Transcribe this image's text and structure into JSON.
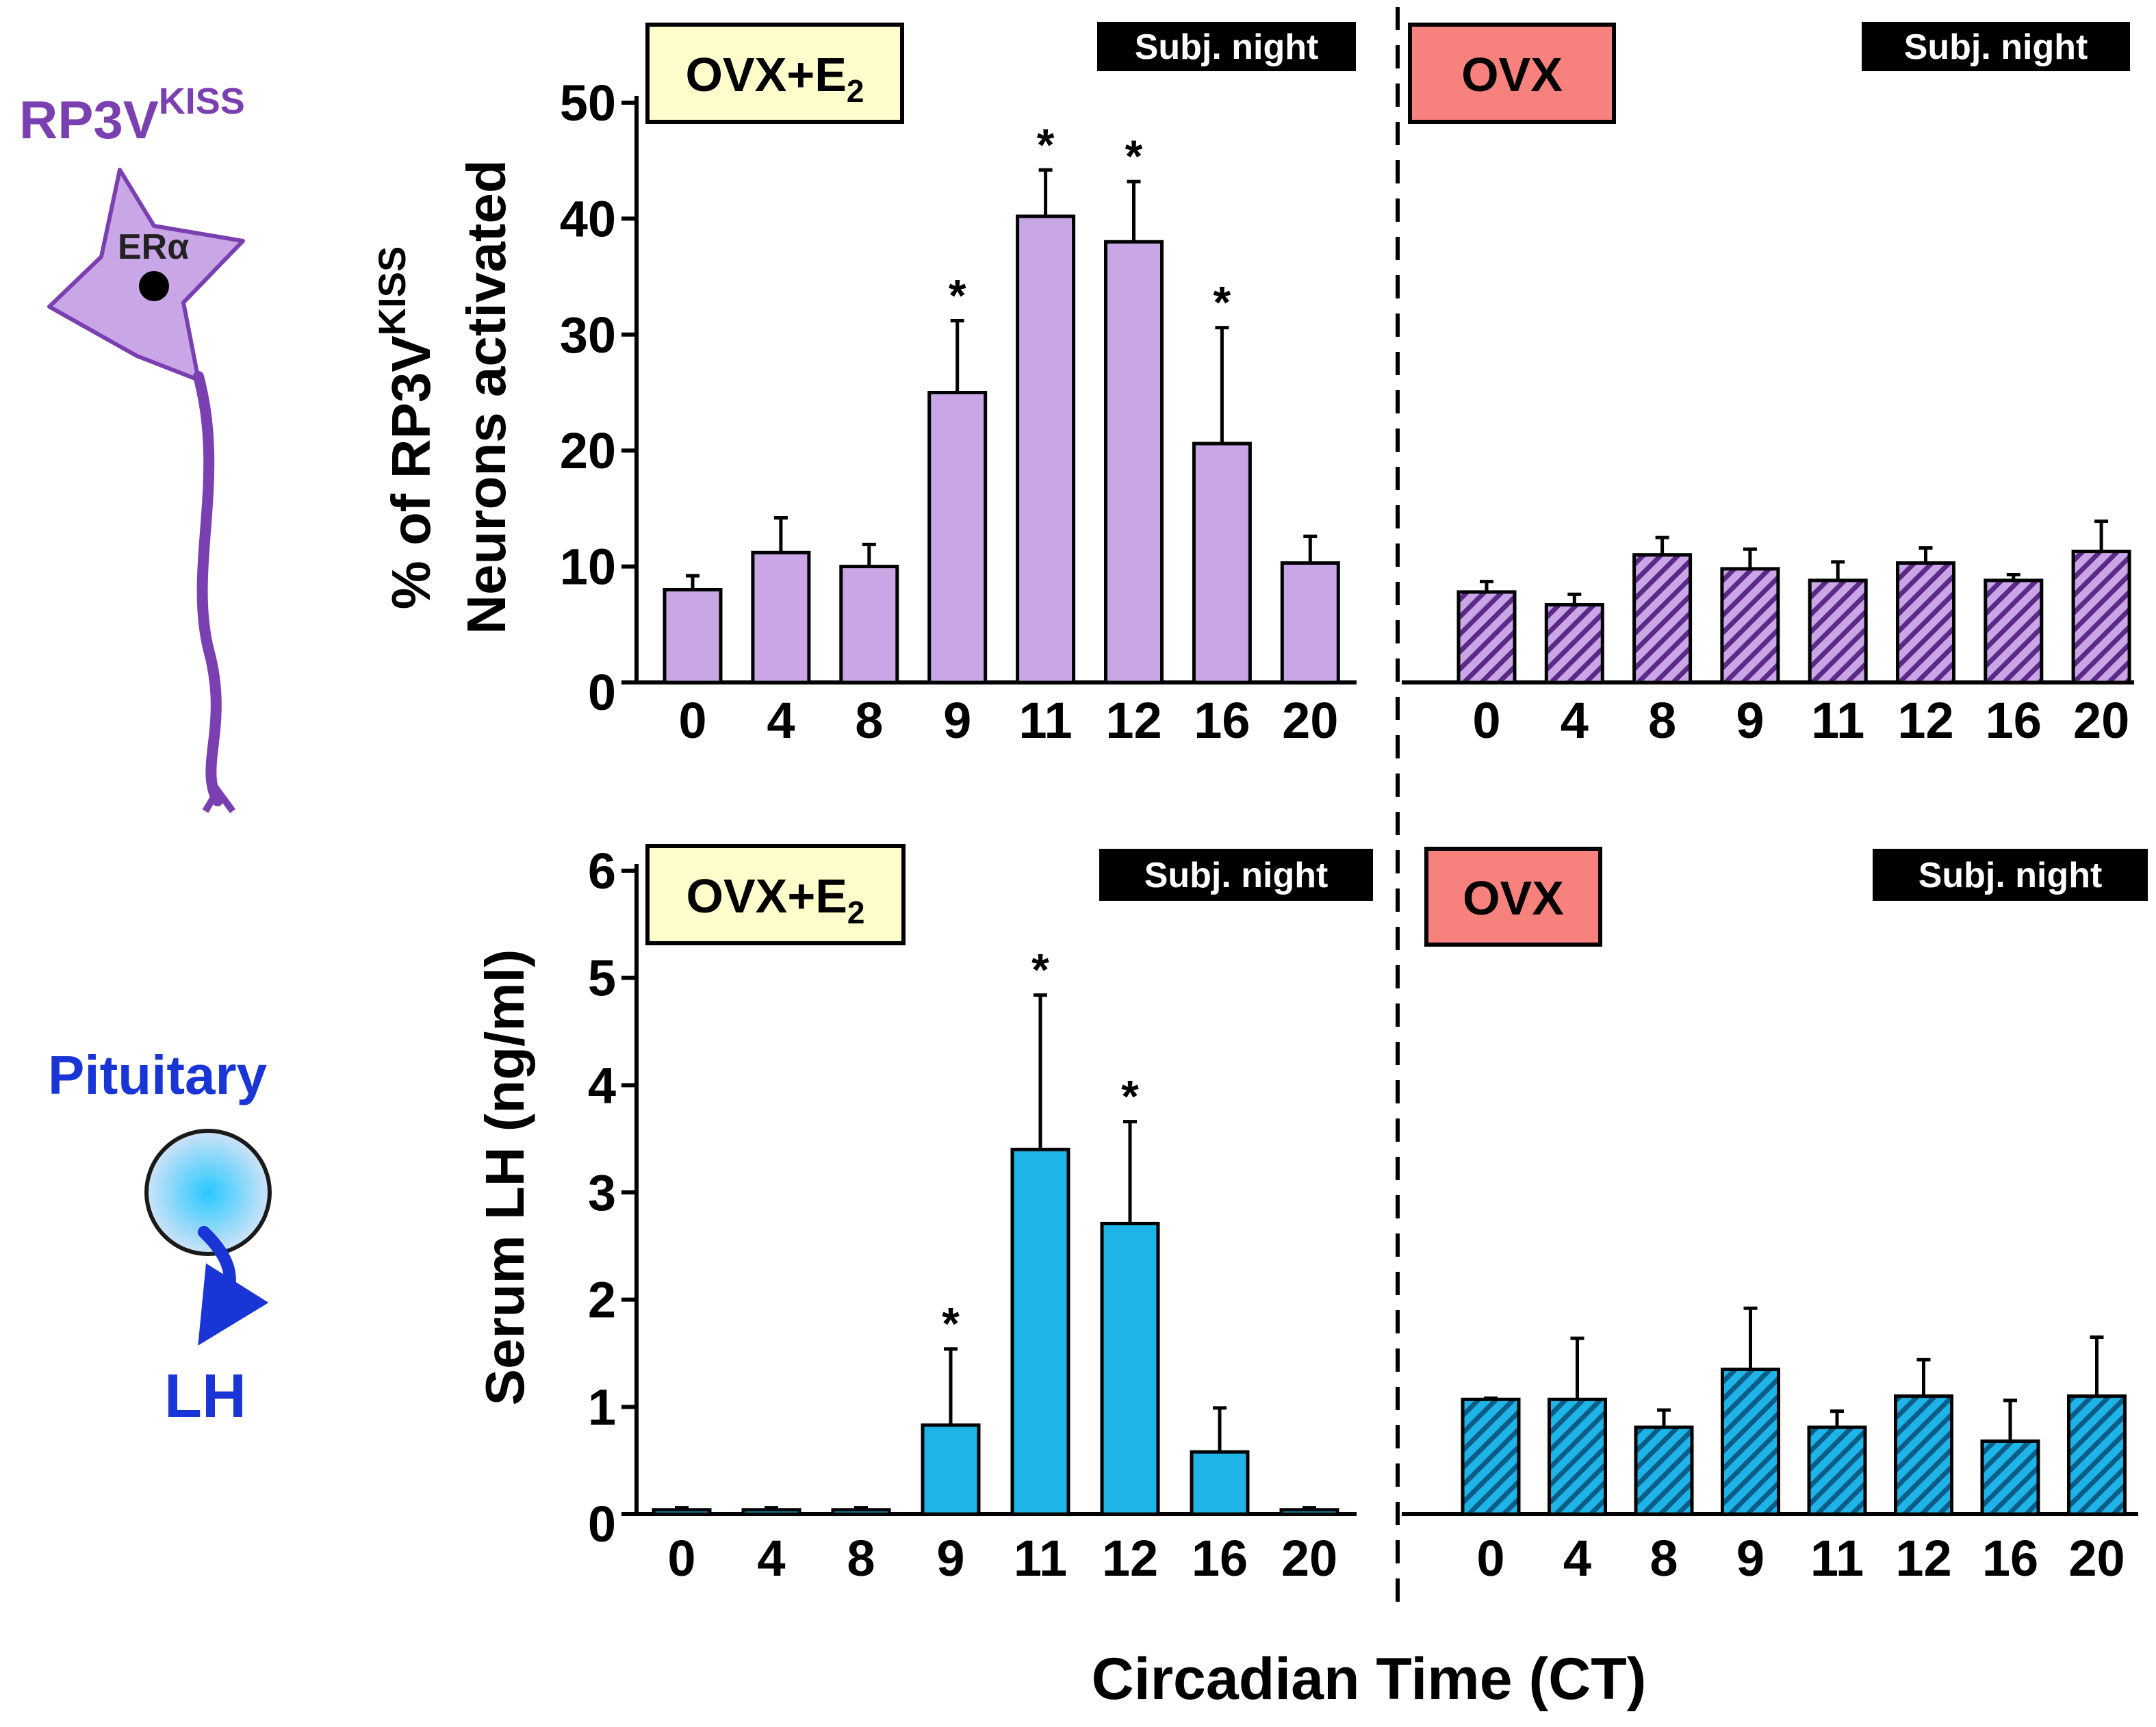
{
  "colors": {
    "kiss_purple": "#c9a6e6",
    "kiss_purple_text": "#7a3fb0",
    "lh_blue": "#1fb4e8",
    "pituitary_blue": "#1a35d6",
    "e2_box": "#fffccc",
    "ovx_box": "#f7817d",
    "night_bar": "#000000"
  },
  "icons": {
    "neuron": "kisspeptin-neuron-icon",
    "pituitary": "pituitary-gland-icon"
  },
  "left_panel": {
    "neuron_label_main": "RP3V",
    "neuron_label_sup": "KISS",
    "receptor_label": "ERα",
    "pituitary_label": "Pituitary",
    "hormone_label": "LH"
  },
  "x_axis_title": "Circadian Time (CT)",
  "chart_data": [
    {
      "type": "bar",
      "title": "",
      "ylabel_line1_main": "% of RP3V",
      "ylabel_line1_sup": "KISS",
      "ylabel_line2": "Neurons activated",
      "ylim": [
        0,
        50
      ],
      "yticks": [
        "0",
        "10",
        "20",
        "30",
        "40",
        "50"
      ],
      "panels": [
        {
          "condition_main": "OVX+E",
          "condition_sub": "2",
          "subjective_night_label": "Subj. night",
          "categories": [
            "0",
            "4",
            "8",
            "9",
            "11",
            "12",
            "16",
            "20"
          ],
          "values": [
            8,
            11.2,
            10,
            25,
            40.2,
            38,
            20.6,
            10.3
          ],
          "errors": [
            1.2,
            3,
            1.9,
            6.2,
            4,
            5.2,
            10,
            2.3
          ],
          "significant": [
            "",
            "",
            "",
            "*",
            "*",
            "*",
            "*",
            ""
          ],
          "hatched": false
        },
        {
          "condition_main": "OVX",
          "condition_sub": "",
          "subjective_night_label": "Subj. night",
          "categories": [
            "0",
            "4",
            "8",
            "9",
            "11",
            "12",
            "16",
            "20"
          ],
          "values": [
            7.8,
            6.7,
            11,
            9.8,
            8.8,
            10.3,
            8.8,
            11.3
          ],
          "errors": [
            0.9,
            0.9,
            1.5,
            1.7,
            1.6,
            1.3,
            0.5,
            2.6
          ],
          "significant": [
            "",
            "",
            "",
            "",
            "",
            "",
            "",
            ""
          ],
          "hatched": true
        }
      ]
    },
    {
      "type": "bar",
      "title": "",
      "ylabel": "Serum LH  (ng/ml)",
      "ylim": [
        0,
        6
      ],
      "yticks": [
        "0",
        "1",
        "2",
        "3",
        "4",
        "5",
        "6"
      ],
      "panels": [
        {
          "condition_main": "OVX+E",
          "condition_sub": "2",
          "subjective_night_label": "Subj. night",
          "categories": [
            "0",
            "4",
            "8",
            "9",
            "11",
            "12",
            "16",
            "20"
          ],
          "values": [
            0.04,
            0.04,
            0.04,
            0.83,
            3.4,
            2.71,
            0.58,
            0.04
          ],
          "errors": [
            0.02,
            0.02,
            0.02,
            0.71,
            1.44,
            0.95,
            0.41,
            0.02
          ],
          "significant": [
            "",
            "",
            "",
            "*",
            "*",
            "*",
            "",
            ""
          ],
          "hatched": false
        },
        {
          "condition_main": "OVX",
          "condition_sub": "",
          "subjective_night_label": "Subj. night",
          "categories": [
            "0",
            "4",
            "8",
            "9",
            "11",
            "12",
            "16",
            "20"
          ],
          "values": [
            1.07,
            1.07,
            0.81,
            1.35,
            0.81,
            1.1,
            0.68,
            1.1
          ],
          "errors": [
            0.01,
            0.57,
            0.16,
            0.57,
            0.15,
            0.34,
            0.38,
            0.55
          ],
          "significant": [
            "",
            "",
            "",
            "",
            "",
            "",
            "",
            ""
          ],
          "hatched": true
        }
      ]
    }
  ]
}
